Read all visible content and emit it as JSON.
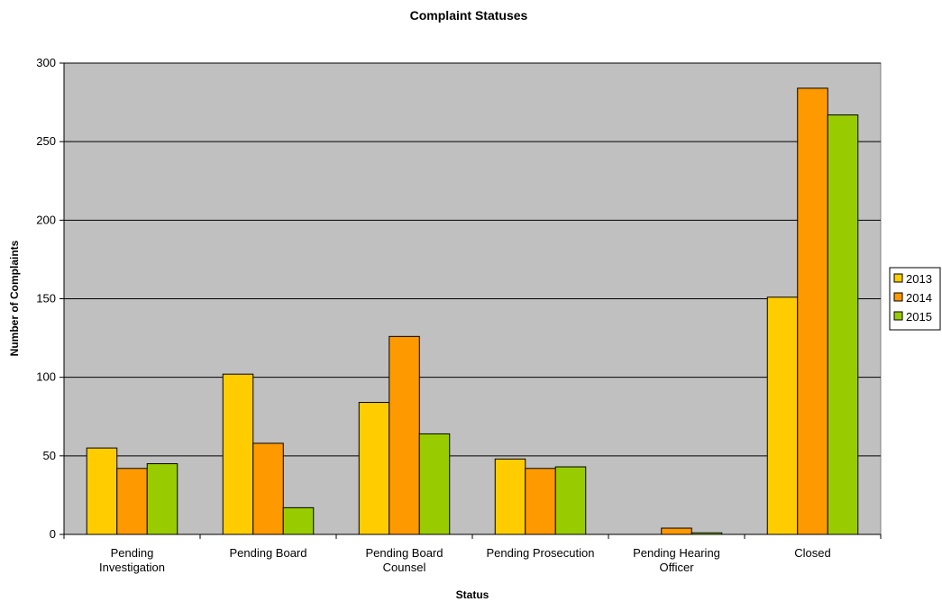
{
  "chart_data": {
    "type": "bar",
    "title": "Complaint Statuses",
    "xlabel": "Status",
    "ylabel": "Number of Complaints",
    "ylim": [
      0,
      300
    ],
    "yticks": [
      0,
      50,
      100,
      150,
      200,
      250,
      300
    ],
    "grid": true,
    "legend_position": "right",
    "categories": [
      [
        "Pending",
        "Investigation"
      ],
      [
        "Pending Board"
      ],
      [
        "Pending Board",
        "Counsel"
      ],
      [
        "Pending Prosecution"
      ],
      [
        "Pending Hearing",
        "Officer"
      ],
      [
        "Closed"
      ]
    ],
    "series": [
      {
        "name": "2013",
        "color": "#FFCC00",
        "values": [
          55,
          102,
          84,
          48,
          0,
          151
        ]
      },
      {
        "name": "2014",
        "color": "#FF9900",
        "values": [
          42,
          58,
          126,
          42,
          4,
          284
        ]
      },
      {
        "name": "2015",
        "color": "#99CC00",
        "values": [
          45,
          17,
          64,
          43,
          1,
          267
        ]
      }
    ],
    "plot_background": "#C0C0C0"
  }
}
